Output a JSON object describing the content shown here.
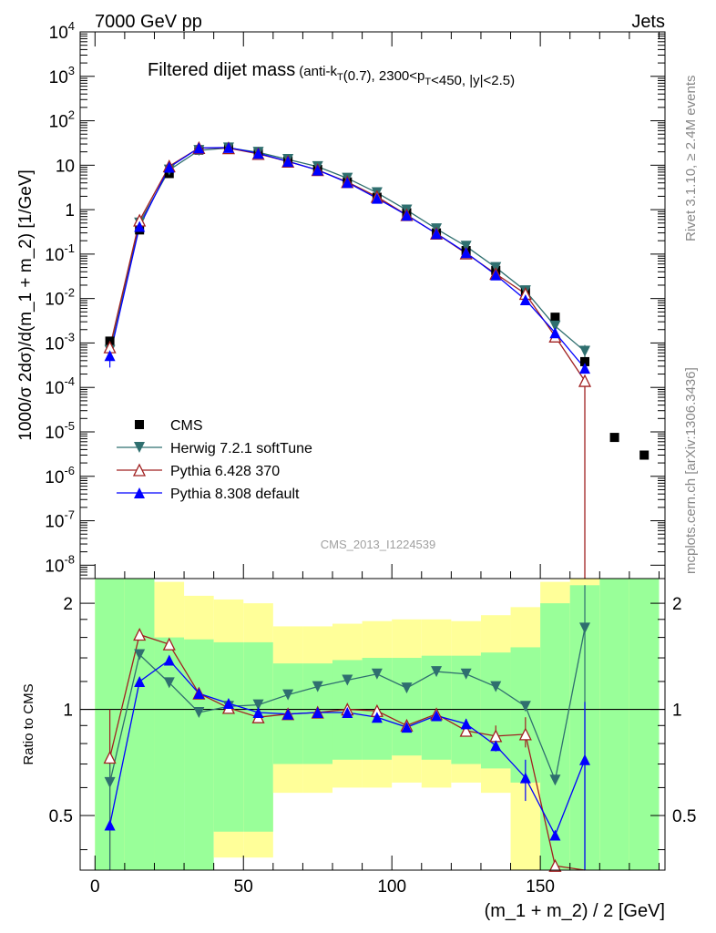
{
  "header": {
    "left": "7000 GeV pp",
    "right": "Jets"
  },
  "side_labels": {
    "rivet": "Rivet 3.1.10, ≥ 2.4M events",
    "mcplots": "mcplots.cern.ch [arXiv:1306.3436]"
  },
  "colors": {
    "cms": "#000000",
    "herwig": "#2f6f6f",
    "pythia6": "#a02020",
    "pythia8": "#0000ff",
    "band_green": "#99ff99",
    "band_yellow": "#ffff99"
  },
  "chart_data": [
    {
      "type": "scatter",
      "title_main": "Filtered dijet mass",
      "title_sub": "(anti-k_T(0.7), 2300<p_T<450, |y|<2.5)",
      "ylabel": "1000/σ 2dσ)/d(m_1 + m_2) [1/GeV]",
      "xlim": [
        -5,
        192
      ],
      "ylim": [
        5e-09,
        10000
      ],
      "yscale": "log",
      "ytick_exponents": [
        -8,
        -7,
        -6,
        -5,
        -4,
        -3,
        -2,
        -1,
        0,
        1,
        2,
        3,
        4
      ],
      "ytick_labels": [
        "10^-8",
        "10^-7",
        "10^-6",
        "10^-5",
        "10^-4",
        "10^-3",
        "10^-2",
        "10^-1",
        "1",
        "10",
        "10^2",
        "10^3",
        "10^4"
      ],
      "watermark": "CMS_2013_I1224539",
      "legend_position": "lower-left",
      "x": [
        5,
        15,
        25,
        35,
        45,
        55,
        65,
        75,
        85,
        95,
        105,
        115,
        125,
        135,
        145,
        155,
        165,
        175,
        185
      ],
      "series": [
        {
          "name": "CMS",
          "marker": "square",
          "values": [
            0.0011,
            0.35,
            6.5,
            22,
            24,
            19,
            12.5,
            8,
            4.2,
            1.9,
            0.85,
            0.3,
            0.12,
            0.043,
            0.015,
            0.0038,
            0.00038,
            7.5e-06,
            3e-06
          ]
        },
        {
          "name": "Herwig 7.2.1 softTune",
          "marker": "triangle-down",
          "values": [
            0.00068,
            0.5,
            7.8,
            21.5,
            24.5,
            19.5,
            13.5,
            9.3,
            5.1,
            2.4,
            0.98,
            0.37,
            0.15,
            0.05,
            0.015,
            0.0024,
            0.00065
          ]
        },
        {
          "name": "Pythia 6.428 370",
          "marker": "triangle-open",
          "values": [
            0.0008,
            0.57,
            9.5,
            24.5,
            24.2,
            18.0,
            12.1,
            7.8,
            4.2,
            1.95,
            0.76,
            0.29,
            0.104,
            0.036,
            0.0128,
            0.0014,
            0.00014
          ]
        },
        {
          "name": "Pythia 8.308 default",
          "marker": "triangle-up",
          "values": [
            0.00052,
            0.42,
            9.0,
            24.5,
            25.0,
            18.5,
            12.2,
            7.8,
            4.1,
            1.8,
            0.75,
            0.29,
            0.108,
            0.034,
            0.0094,
            0.0017,
            0.00027
          ]
        }
      ]
    },
    {
      "type": "scatter",
      "title": "",
      "xlabel": "(m_1 + m_2) / 2 [GeV]",
      "ylabel": "Ratio to CMS",
      "xlim": [
        -5,
        192
      ],
      "ylim": [
        0.35,
        2.35
      ],
      "xticks": [
        0,
        50,
        100,
        150
      ],
      "yticks": [
        0.5,
        1,
        2
      ],
      "x": [
        5,
        15,
        25,
        35,
        45,
        55,
        65,
        75,
        85,
        95,
        105,
        115,
        125,
        135,
        145,
        155,
        165
      ],
      "bands": {
        "bin_edges": [
          0,
          10,
          20,
          30,
          40,
          50,
          60,
          70,
          80,
          90,
          100,
          110,
          120,
          130,
          140,
          150,
          160,
          170,
          180,
          190
        ],
        "green_lo": [
          0.35,
          0.35,
          0.35,
          0.35,
          0.45,
          0.45,
          0.7,
          0.7,
          0.72,
          0.72,
          0.74,
          0.72,
          0.7,
          0.68,
          0.62,
          0.35,
          0.35,
          0.35,
          0.35
        ],
        "green_hi": [
          2.35,
          2.35,
          1.6,
          1.58,
          1.55,
          1.55,
          1.35,
          1.35,
          1.38,
          1.4,
          1.4,
          1.42,
          1.42,
          1.45,
          1.5,
          2.0,
          2.25,
          2.35,
          2.35
        ],
        "yellow_lo": [
          0.35,
          0.35,
          0.68,
          0.62,
          0.38,
          0.38,
          0.58,
          0.58,
          0.6,
          0.6,
          0.62,
          0.6,
          0.62,
          0.58,
          0.35,
          0.35,
          0.35,
          0.35,
          0.35
        ],
        "yellow_hi": [
          2.35,
          2.35,
          2.3,
          2.1,
          2.05,
          2.0,
          1.72,
          1.72,
          1.75,
          1.78,
          1.8,
          1.8,
          1.78,
          1.85,
          1.95,
          2.3,
          2.35,
          2.35,
          2.35
        ]
      },
      "series": [
        {
          "name": "Herwig 7.2.1 softTune",
          "marker": "triangle-down",
          "values": [
            0.62,
            1.43,
            1.19,
            0.98,
            1.02,
            1.03,
            1.1,
            1.16,
            1.21,
            1.26,
            1.15,
            1.28,
            1.26,
            1.16,
            1.02,
            0.63,
            1.7
          ]
        },
        {
          "name": "Pythia 6.428 370",
          "marker": "triangle-open",
          "values": [
            0.73,
            1.63,
            1.53,
            1.11,
            1.01,
            0.95,
            0.97,
            0.98,
            1.0,
            0.99,
            0.9,
            0.97,
            0.87,
            0.84,
            0.85,
            0.36,
            0.35
          ]
        },
        {
          "name": "Pythia 8.308 default",
          "marker": "triangle-up",
          "values": [
            0.47,
            1.2,
            1.38,
            1.11,
            1.04,
            0.98,
            0.97,
            0.98,
            0.98,
            0.95,
            0.89,
            0.96,
            0.91,
            0.79,
            0.64,
            0.44,
            0.72
          ]
        }
      ]
    }
  ]
}
